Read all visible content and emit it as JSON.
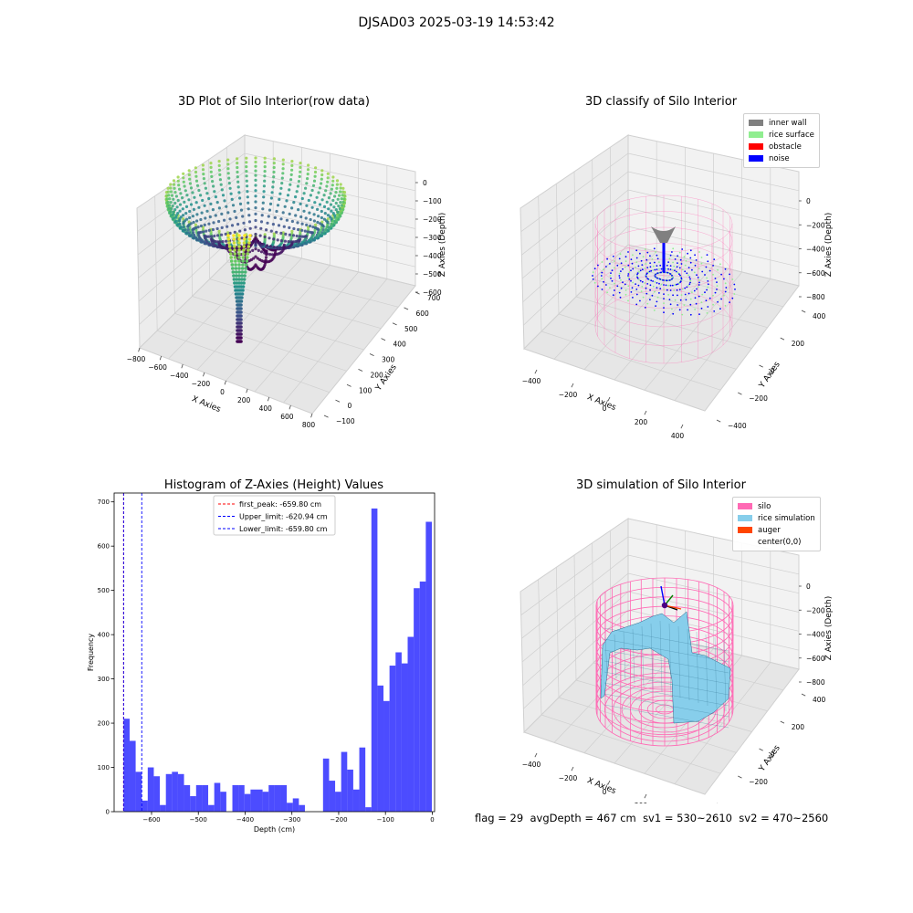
{
  "figure": {
    "suptitle": "DJSAD03 2025-03-19 14:53:42",
    "footer": {
      "flag": "flag = 29",
      "avg": "avgDepth = 467 cm",
      "sv1": "sv1 = 530~2610",
      "sv2": "sv2 = 470~2560"
    }
  },
  "chart_data": [
    {
      "type": "scatter",
      "title": "3D Plot of Silo Interior(row data)",
      "projection": "3d",
      "xlabel": "X Axies",
      "ylabel": "Y Axies",
      "zlabel": "Z Axies (Depth)",
      "x_ticks": [
        "−800",
        "−600",
        "−400",
        "−200",
        "0",
        "200",
        "400",
        "600",
        "800"
      ],
      "y_ticks": [
        "−100",
        "0",
        "100",
        "200",
        "300",
        "400",
        "500",
        "600",
        "700"
      ],
      "z_ticks": [
        "−600",
        "−500",
        "−400",
        "−300",
        "−200",
        "−100",
        "0"
      ],
      "xlim": [
        -800,
        800
      ],
      "ylim": [
        -100,
        750
      ],
      "zlim": [
        -660,
        0
      ],
      "colormap": "viridis",
      "colormap_colors": [
        "#440154",
        "#3b528b",
        "#21918c",
        "#5ec962",
        "#fde725"
      ],
      "grid": true
    },
    {
      "type": "scatter",
      "title": "3D classify of Silo Interior",
      "projection": "3d",
      "xlabel": "X Axies",
      "ylabel": "Y Axies",
      "zlabel": "Z Axies (Depth)",
      "x_ticks": [
        "−400",
        "−200",
        "0",
        "200",
        "400"
      ],
      "y_ticks": [
        "−400",
        "−200",
        "0",
        "200",
        "400"
      ],
      "z_ticks": [
        "−800",
        "−600",
        "−400",
        "−200",
        "0"
      ],
      "xlim": [
        -500,
        500
      ],
      "ylim": [
        -500,
        500
      ],
      "zlim": [
        -850,
        0
      ],
      "legend_position": "top-right",
      "legend": [
        {
          "label": "inner wall",
          "color": "#808080"
        },
        {
          "label": "rice surface",
          "color": "#90ee90"
        },
        {
          "label": "obstacle",
          "color": "#ff0000"
        },
        {
          "label": "noise",
          "color": "#0000ff"
        }
      ],
      "cylinder_color": "#ff69b4",
      "grid": true
    },
    {
      "type": "bar",
      "title": "Histogram of Z-Axies (Height) Values",
      "xlabel": "Depth (cm)",
      "ylabel": "Frequency",
      "xlim": [
        -680,
        5
      ],
      "ylim": [
        0,
        720
      ],
      "x_ticks": [
        -600,
        -500,
        -400,
        -300,
        -200,
        -100,
        0
      ],
      "y_ticks": [
        0,
        100,
        200,
        300,
        400,
        500,
        600,
        700
      ],
      "bar_color": "#0000ff",
      "bin_width": 12.92,
      "bins_start": -659.8,
      "values": [
        210,
        160,
        90,
        25,
        100,
        80,
        15,
        85,
        90,
        85,
        60,
        35,
        60,
        60,
        15,
        65,
        45,
        0,
        60,
        60,
        40,
        50,
        50,
        45,
        60,
        60,
        60,
        20,
        30,
        15,
        0,
        0,
        0,
        120,
        70,
        45,
        135,
        95,
        50,
        145,
        10,
        685,
        285,
        250,
        330,
        360,
        335,
        395,
        505,
        520,
        655
      ],
      "reference_lines": [
        {
          "label": "first_peak: -659.80 cm",
          "value": -659.8,
          "color": "#ff0000"
        },
        {
          "label": "Upper_limit: -620.94 cm",
          "value": -620.94,
          "color": "#0000ff"
        },
        {
          "label": "Lower_limit: -659.80 cm",
          "value": -659.8,
          "color": "#0000ff"
        }
      ],
      "legend_position": "top-center",
      "grid": false
    },
    {
      "type": "area",
      "title": "3D simulation of Silo Interior",
      "projection": "3d",
      "xlabel": "X Axies",
      "ylabel": "Y Axies",
      "zlabel": "Z Axies (Depth)",
      "x_ticks": [
        "−400",
        "−200",
        "0",
        "200",
        "400"
      ],
      "y_ticks": [
        "−400",
        "−200",
        "0",
        "200",
        "400"
      ],
      "z_ticks": [
        "−800",
        "−600",
        "−400",
        "−200",
        "0"
      ],
      "xlim": [
        -500,
        500
      ],
      "ylim": [
        -500,
        500
      ],
      "zlim": [
        -850,
        0
      ],
      "legend_position": "top-right",
      "legend": [
        {
          "label": "silo",
          "color": "#ff69b4"
        },
        {
          "label": "rice simulation",
          "color": "#87ceeb"
        },
        {
          "label": "auger",
          "color": "#ff4500"
        },
        {
          "label": "center(0,0)",
          "color": ""
        }
      ],
      "grid": true
    }
  ]
}
